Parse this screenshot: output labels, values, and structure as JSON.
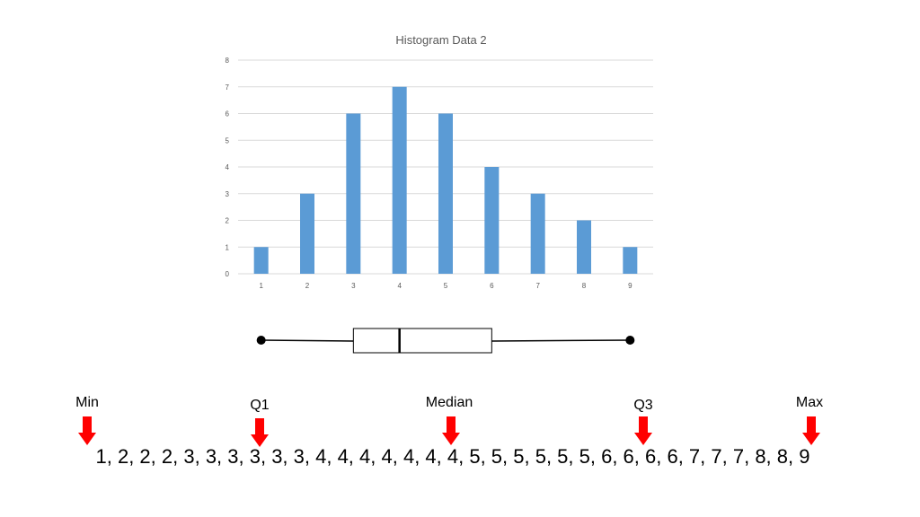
{
  "chart_data": {
    "type": "bar",
    "title": "Histogram Data 2",
    "categories": [
      "1",
      "2",
      "3",
      "4",
      "5",
      "6",
      "7",
      "8",
      "9"
    ],
    "values": [
      1,
      3,
      6,
      7,
      6,
      4,
      3,
      2,
      1
    ],
    "ylim": [
      0,
      8
    ],
    "yticks": [
      "0",
      "1",
      "2",
      "3",
      "4",
      "5",
      "6",
      "7",
      "8"
    ],
    "grid": true,
    "bar_color": "#5b9bd5"
  },
  "boxplot": {
    "min": 1,
    "q1": 3,
    "median": 4,
    "q3": 6,
    "max": 9
  },
  "markers": {
    "min_label": "Min",
    "q1_label": "Q1",
    "median_label": "Median",
    "q3_label": "Q3",
    "max_label": "Max",
    "arrow_color": "#ff0000"
  },
  "sequence": "1, 2, 2, 2, 3, 3, 3, 3, 3, 3, 4, 4, 4, 4, 4, 4, 4, 5, 5, 5, 5, 5, 5, 6, 6, 6, 6, 7, 7, 7, 8, 8, 9"
}
